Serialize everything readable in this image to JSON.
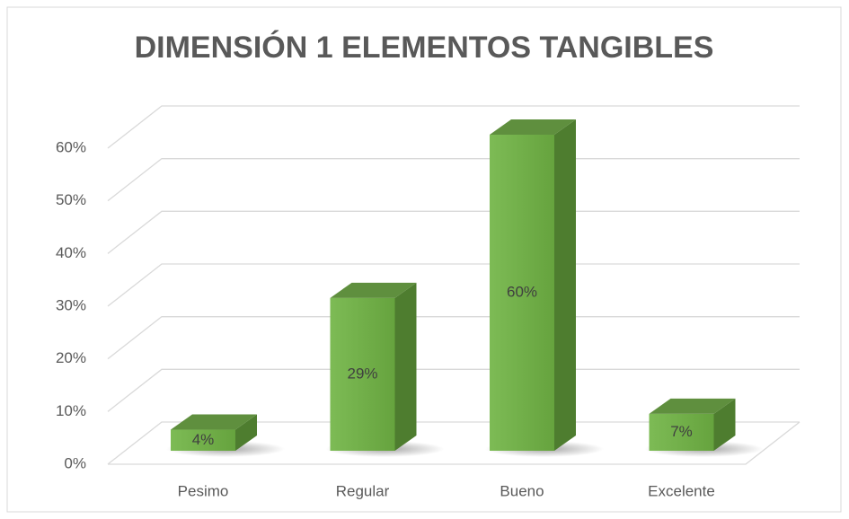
{
  "chart_data": {
    "type": "bar3d",
    "title": "DIMENSIÓN 1  ELEMENTOS TANGIBLES",
    "categories": [
      "Pesimo",
      "Regular",
      "Bueno",
      "Excelente"
    ],
    "values": [
      4,
      29,
      60,
      7
    ],
    "value_labels": [
      "4%",
      "29%",
      "60%",
      "7%"
    ],
    "color": "#70ad47",
    "ylim": [
      0,
      60
    ],
    "yticks": [
      {
        "value": 0,
        "label": "0%"
      },
      {
        "value": 10,
        "label": "10%"
      },
      {
        "value": 20,
        "label": "20%"
      },
      {
        "value": 30,
        "label": "30%"
      },
      {
        "value": 40,
        "label": "40%"
      },
      {
        "value": 50,
        "label": "50%"
      },
      {
        "value": 60,
        "label": "60%"
      }
    ],
    "grid": true
  }
}
